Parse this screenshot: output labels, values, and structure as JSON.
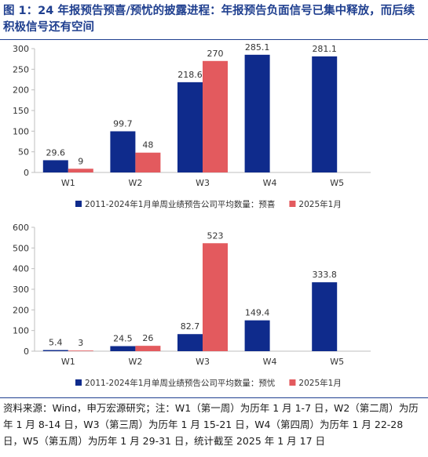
{
  "figure": {
    "title": "图 1：24 年报预告预喜/预忧的披露进程：年报预告负面信号已集中释放，而后续积极信号还有空间",
    "source_note": "资料来源：Wind，申万宏源研究；注：W1（第一周）为历年 1 月 1-7 日，W2（第二周）为历年 1 月 8-14 日，W3（第三周）为历年 1 月 15-21 日，W4（第四周）为历年 1 月 22-28 日，W5（第五周）为历年 1 月 29-31 日，统计截至 2025 年 1 月 17 日"
  },
  "colors": {
    "hist": "#0f2b8c",
    "current": "#e35a5e",
    "axis": "#bfbfbf"
  },
  "chart_data": [
    {
      "type": "bar",
      "categories": [
        "W1",
        "W2",
        "W3",
        "W4",
        "W5"
      ],
      "series": [
        {
          "name": "2011-2024年1月单周业绩预告公司平均数量：预喜",
          "values": [
            29.6,
            99.7,
            218.6,
            285.1,
            281.1
          ],
          "labels": [
            "29.6",
            "99.7",
            "218.6",
            "285.1",
            "281.1"
          ]
        },
        {
          "name": "2025年1月",
          "values": [
            9,
            48,
            270,
            null,
            null
          ],
          "labels": [
            "9",
            "48",
            "270",
            "",
            ""
          ]
        }
      ],
      "ylim": [
        0,
        300
      ],
      "yticks": [
        "0",
        "50",
        "100",
        "150",
        "200",
        "250",
        "300"
      ],
      "grid": false,
      "legend": "bottom-center"
    },
    {
      "type": "bar",
      "categories": [
        "W1",
        "W2",
        "W3",
        "W4",
        "W5"
      ],
      "series": [
        {
          "name": "2011-2024年1月单周业绩预告公司平均数量：预忧",
          "values": [
            5.4,
            24.5,
            82.7,
            149.4,
            333.8
          ],
          "labels": [
            "5.4",
            "24.5",
            "82.7",
            "149.4",
            "333.8"
          ]
        },
        {
          "name": "2025年1月",
          "values": [
            3,
            26,
            523,
            null,
            null
          ],
          "labels": [
            "3",
            "26",
            "523",
            "",
            ""
          ]
        }
      ],
      "ylim": [
        0,
        600
      ],
      "yticks": [
        "0",
        "100",
        "200",
        "300",
        "400",
        "500",
        "600"
      ],
      "grid": false,
      "legend": "bottom-center"
    }
  ]
}
